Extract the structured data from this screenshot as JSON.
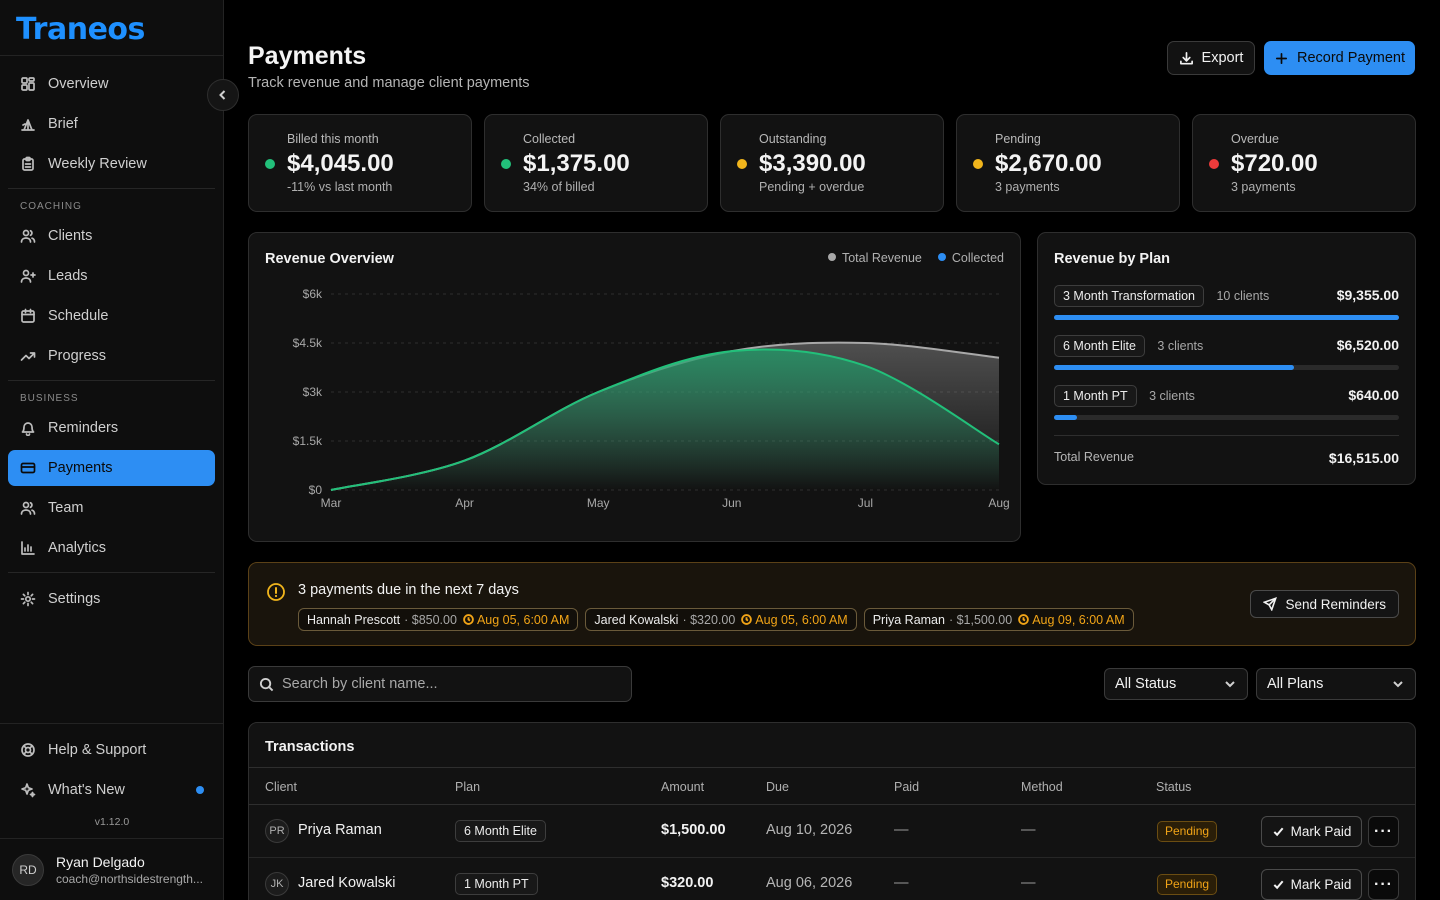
{
  "app": {
    "logo": "Traneos",
    "version": "v1.12.0"
  },
  "sidebar": {
    "top_items": [
      {
        "label": "Overview",
        "icon": "grid-icon"
      },
      {
        "label": "Brief",
        "icon": "tent-icon"
      },
      {
        "label": "Weekly Review",
        "icon": "clipboard-icon"
      }
    ],
    "coaching_label": "COACHING",
    "coaching_items": [
      {
        "label": "Clients",
        "icon": "users-icon"
      },
      {
        "label": "Leads",
        "icon": "user-plus-icon"
      },
      {
        "label": "Schedule",
        "icon": "calendar-icon"
      },
      {
        "label": "Progress",
        "icon": "trending-up-icon"
      }
    ],
    "business_label": "BUSINESS",
    "business_items": [
      {
        "label": "Reminders",
        "icon": "bell-icon"
      },
      {
        "label": "Payments",
        "icon": "credit-card-icon",
        "active": true
      },
      {
        "label": "Team",
        "icon": "team-icon"
      },
      {
        "label": "Analytics",
        "icon": "bar-chart-icon"
      }
    ],
    "settings_label": "Settings",
    "help_label": "Help & Support",
    "whats_new_label": "What's New",
    "user": {
      "initials": "RD",
      "name": "Ryan Delgado",
      "email": "coach@northsidestrength..."
    }
  },
  "header": {
    "title": "Payments",
    "subtitle": "Track revenue and manage client payments",
    "export_label": "Export",
    "record_label": "Record Payment"
  },
  "stats": [
    {
      "label": "Billed this month",
      "value": "$4,045.00",
      "note": "-11% vs last month",
      "color": "#22c07a"
    },
    {
      "label": "Collected",
      "value": "$1,375.00",
      "note": "34% of billed",
      "color": "#22c07a"
    },
    {
      "label": "Outstanding",
      "value": "$3,390.00",
      "note": "Pending + overdue",
      "color": "#f1b51c"
    },
    {
      "label": "Pending",
      "value": "$2,670.00",
      "note": "3 payments",
      "color": "#f1b51c"
    },
    {
      "label": "Overdue",
      "value": "$720.00",
      "note": "3 payments",
      "color": "#ef3b3b"
    }
  ],
  "revenue_overview": {
    "title": "Revenue Overview",
    "legend_total": "Total Revenue",
    "legend_collected": "Collected"
  },
  "chart_data": {
    "type": "area",
    "categories": [
      "Mar",
      "Apr",
      "May",
      "Jun",
      "Jul",
      "Aug"
    ],
    "y_ticks": [
      "$0",
      "$1.5k",
      "$3k",
      "$4.5k",
      "$6k"
    ],
    "ylim": [
      0,
      6000
    ],
    "series": [
      {
        "name": "Total Revenue",
        "color": "#a8a8a8",
        "values": [
          0,
          900,
          3000,
          4250,
          4500,
          4050
        ]
      },
      {
        "name": "Collected",
        "color": "#22c07a",
        "values": [
          0,
          900,
          3000,
          4250,
          3800,
          1400
        ]
      }
    ],
    "grid": true
  },
  "revenue_by_plan": {
    "title": "Revenue by Plan",
    "plans": [
      {
        "name": "3 Month Transformation",
        "clients": "10 clients",
        "amount": "$9,355.00",
        "fraction": 1.0
      },
      {
        "name": "6 Month Elite",
        "clients": "3 clients",
        "amount": "$6,520.00",
        "fraction": 0.697
      },
      {
        "name": "1 Month PT",
        "clients": "3 clients",
        "amount": "$640.00",
        "fraction": 0.068
      }
    ],
    "total_label": "Total Revenue",
    "total_value": "$16,515.00"
  },
  "due_alert": {
    "title": "3 payments due in the next 7 days",
    "send_label": "Send Reminders",
    "items": [
      {
        "name": "Hannah Prescott",
        "amount": "· $850.00",
        "date": "Aug 05, 6:00 AM"
      },
      {
        "name": "Jared Kowalski",
        "amount": "· $320.00",
        "date": "Aug 05, 6:00 AM"
      },
      {
        "name": "Priya Raman",
        "amount": "· $1,500.00",
        "date": "Aug 09, 6:00 AM"
      }
    ]
  },
  "filters": {
    "search_placeholder": "Search by client name...",
    "status_value": "All Status",
    "plan_value": "All Plans"
  },
  "transactions": {
    "title": "Transactions",
    "columns": [
      "Client",
      "Plan",
      "Amount",
      "Due",
      "Paid",
      "Method",
      "Status"
    ],
    "mark_label": "Mark Paid",
    "rows": [
      {
        "initials": "PR",
        "client": "Priya Raman",
        "plan": "6 Month Elite",
        "amount": "$1,500.00",
        "due": "Aug 10, 2026",
        "paid": "—",
        "method": "—",
        "status": "Pending"
      },
      {
        "initials": "JK",
        "client": "Jared Kowalski",
        "plan": "1 Month PT",
        "amount": "$320.00",
        "due": "Aug 06, 2026",
        "paid": "—",
        "method": "—",
        "status": "Pending"
      }
    ]
  }
}
